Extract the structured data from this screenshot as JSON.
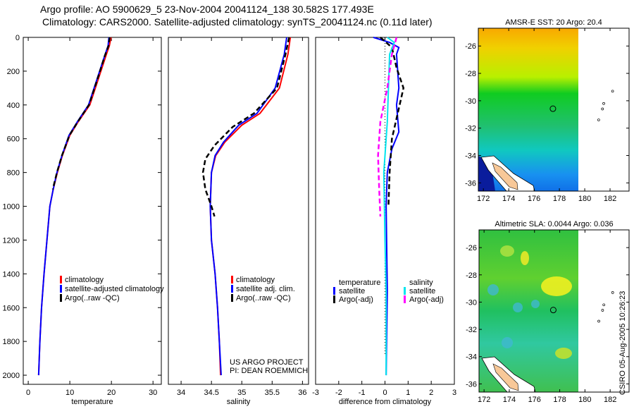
{
  "titles": {
    "line1": "Argo profile: AO 5900629_5 23-Nov-2004 20041124_138 30.582S 177.493E",
    "line2": "Climatology: CARS2000. Satellite-adjusted climatology: synTS_20041124.nc (0.11d later)"
  },
  "footer": "CSIRO 05-Aug-2005 10:26:23",
  "colors": {
    "climatology": "#ff0000",
    "satellite": "#0000ff",
    "argo": "#000000",
    "sal_satellite": "#00e5ee",
    "sal_argo": "#ff00ff"
  },
  "chart_data": [
    {
      "type": "line",
      "id": "temp",
      "xlabel": "temperature",
      "ylabel": "",
      "xlim": [
        -1.2,
        32
      ],
      "ylim": [
        2054,
        0
      ],
      "xticks": [
        0,
        10,
        20,
        30
      ],
      "yticks": [
        0,
        200,
        400,
        600,
        800,
        1000,
        1200,
        1400,
        1600,
        1800,
        2000
      ],
      "legend": [
        "climatology",
        "satellite-adjusted climatology",
        "Argo(..raw -QC)"
      ],
      "series": [
        {
          "name": "climatology",
          "color": "climatology",
          "dash": false,
          "points": [
            [
              19.9,
              0
            ],
            [
              19.5,
              50
            ],
            [
              18.8,
              100
            ],
            [
              16.8,
              250
            ],
            [
              14.8,
              400
            ],
            [
              12,
              500
            ],
            [
              10,
              580
            ],
            [
              8.2,
              700
            ],
            [
              7,
              800
            ],
            [
              6,
              900
            ],
            [
              5.2,
              1000
            ],
            [
              4.5,
              1200
            ],
            [
              3.8,
              1400
            ],
            [
              3.2,
              1600
            ],
            [
              2.8,
              1800
            ],
            [
              2.5,
              2000
            ]
          ]
        },
        {
          "name": "satellite-adjusted climatology",
          "color": "satellite",
          "dash": false,
          "points": [
            [
              19.4,
              0
            ],
            [
              19.2,
              50
            ],
            [
              18.5,
              100
            ],
            [
              16.5,
              250
            ],
            [
              14.5,
              400
            ],
            [
              11.8,
              500
            ],
            [
              9.8,
              580
            ],
            [
              8.1,
              700
            ],
            [
              6.9,
              800
            ],
            [
              6,
              900
            ],
            [
              5.2,
              1000
            ],
            [
              4.5,
              1200
            ],
            [
              3.8,
              1400
            ],
            [
              3.2,
              1600
            ],
            [
              2.8,
              1800
            ],
            [
              2.5,
              2000
            ]
          ]
        },
        {
          "name": "Argo(..raw -QC)",
          "color": "argo",
          "dash": true,
          "points": [
            [
              19.6,
              0
            ],
            [
              19.3,
              50
            ],
            [
              18.4,
              110
            ],
            [
              16.6,
              250
            ],
            [
              14.6,
              400
            ],
            [
              11.9,
              500
            ],
            [
              9.9,
              580
            ],
            [
              8.1,
              700
            ],
            [
              6.9,
              800
            ],
            [
              5.9,
              900
            ]
          ]
        }
      ]
    },
    {
      "type": "line",
      "id": "sal",
      "xlabel": "salinity",
      "ylabel": "",
      "xlim": [
        33.79,
        36.1
      ],
      "ylim": [
        2054,
        0
      ],
      "xticks": [
        34,
        34.5,
        35,
        35.5,
        36
      ],
      "yticks": [],
      "legend": [
        "climatology",
        "satellite adj. clim.",
        "Argo(..raw -QC)"
      ],
      "annotation": [
        "US ARGO PROJECT",
        "PI: DEAN ROEMMICH"
      ],
      "series": [
        {
          "name": "climatology",
          "color": "climatology",
          "dash": false,
          "points": [
            [
              35.8,
              0
            ],
            [
              35.76,
              100
            ],
            [
              35.62,
              300
            ],
            [
              35.3,
              450
            ],
            [
              35.0,
              520
            ],
            [
              34.72,
              620
            ],
            [
              34.57,
              700
            ],
            [
              34.5,
              800
            ],
            [
              34.48,
              1000
            ],
            [
              34.5,
              1200
            ],
            [
              34.56,
              1400
            ],
            [
              34.6,
              1600
            ],
            [
              34.63,
              1800
            ],
            [
              34.65,
              2000
            ]
          ]
        },
        {
          "name": "satellite adj. clim.",
          "color": "satellite",
          "dash": false,
          "points": [
            [
              35.74,
              0
            ],
            [
              35.7,
              100
            ],
            [
              35.55,
              300
            ],
            [
              35.25,
              450
            ],
            [
              34.95,
              520
            ],
            [
              34.7,
              620
            ],
            [
              34.56,
              700
            ],
            [
              34.5,
              800
            ],
            [
              34.48,
              1000
            ],
            [
              34.5,
              1200
            ],
            [
              34.56,
              1400
            ],
            [
              34.6,
              1600
            ],
            [
              34.63,
              1800
            ],
            [
              34.66,
              2000
            ]
          ]
        },
        {
          "name": "Argo(..raw -QC)",
          "color": "argo",
          "dash": true,
          "points": [
            [
              35.78,
              0
            ],
            [
              35.72,
              100
            ],
            [
              35.58,
              300
            ],
            [
              35.2,
              450
            ],
            [
              34.85,
              530
            ],
            [
              34.55,
              640
            ],
            [
              34.4,
              720
            ],
            [
              34.36,
              800
            ],
            [
              34.4,
              900
            ],
            [
              34.5,
              1000
            ],
            [
              34.55,
              1060
            ]
          ]
        }
      ]
    },
    {
      "type": "line",
      "id": "diff",
      "xlabel": "difference from climatology",
      "ylabel": "",
      "xlim": [
        -3,
        3
      ],
      "ylim": [
        2054,
        0
      ],
      "xticks": [
        -3,
        -2,
        -1,
        0,
        1,
        2,
        3
      ],
      "yticks": [],
      "legend_titles": [
        "temperature",
        "salinity"
      ],
      "legend": [
        "satellite",
        "Argo(-adj)",
        "satellite",
        "Argo(-adj)"
      ],
      "series": [
        {
          "name": "temperature satellite",
          "color": "satellite",
          "dash": false,
          "points": [
            [
              -0.5,
              0
            ],
            [
              0.2,
              30
            ],
            [
              0.6,
              60
            ],
            [
              0.5,
              100
            ],
            [
              0.6,
              300
            ],
            [
              0.5,
              400
            ],
            [
              0.6,
              560
            ],
            [
              0.3,
              660
            ],
            [
              0.1,
              800
            ],
            [
              0.05,
              1000
            ],
            [
              0.1,
              1500
            ],
            [
              0.05,
              2000
            ]
          ]
        },
        {
          "name": "temperature Argo(-adj)",
          "color": "argo",
          "dash": true,
          "points": [
            [
              -0.2,
              0
            ],
            [
              0.3,
              60
            ],
            [
              0.5,
              180
            ],
            [
              0.8,
              300
            ],
            [
              0.6,
              420
            ],
            [
              0.3,
              600
            ],
            [
              0.2,
              800
            ],
            [
              0.15,
              1000
            ]
          ]
        },
        {
          "name": "salinity satellite",
          "color": "sal_satellite",
          "dash": false,
          "points": [
            [
              0.1,
              0
            ],
            [
              0.4,
              30
            ],
            [
              0.2,
              100
            ],
            [
              0.15,
              300
            ],
            [
              0.1,
              500
            ],
            [
              -0.05,
              800
            ],
            [
              0,
              1200
            ],
            [
              0.05,
              1500
            ],
            [
              0.05,
              2000
            ]
          ]
        },
        {
          "name": "salinity Argo(-adj)",
          "color": "sal_argo",
          "dash": true,
          "points": [
            [
              0.5,
              0
            ],
            [
              0.3,
              100
            ],
            [
              0.1,
              300
            ],
            [
              -0.2,
              500
            ],
            [
              -0.3,
              700
            ],
            [
              -0.25,
              900
            ],
            [
              -0.2,
              1060
            ]
          ]
        }
      ]
    },
    {
      "type": "heatmap",
      "id": "sst",
      "title": "AMSR-E SST: 20 Argo: 20.4",
      "xlim": [
        171.6,
        183.5
      ],
      "ylim": [
        -36.6,
        -24.7
      ],
      "xticks": [
        172,
        174,
        176,
        178,
        180,
        182
      ],
      "yticks": [
        -26,
        -28,
        -30,
        -32,
        -34,
        -36
      ],
      "marker": [
        177.49,
        -30.58
      ]
    },
    {
      "type": "heatmap",
      "id": "sla",
      "title": "Altimetric SLA: 0.0044 Argo: 0.036",
      "xlim": [
        171.6,
        183.5
      ],
      "ylim": [
        -36.6,
        -24.7
      ],
      "xticks": [
        172,
        174,
        176,
        178,
        180,
        182
      ],
      "yticks": [
        -26,
        -28,
        -30,
        -32,
        -34,
        -36
      ],
      "marker": [
        177.49,
        -30.58
      ]
    }
  ]
}
